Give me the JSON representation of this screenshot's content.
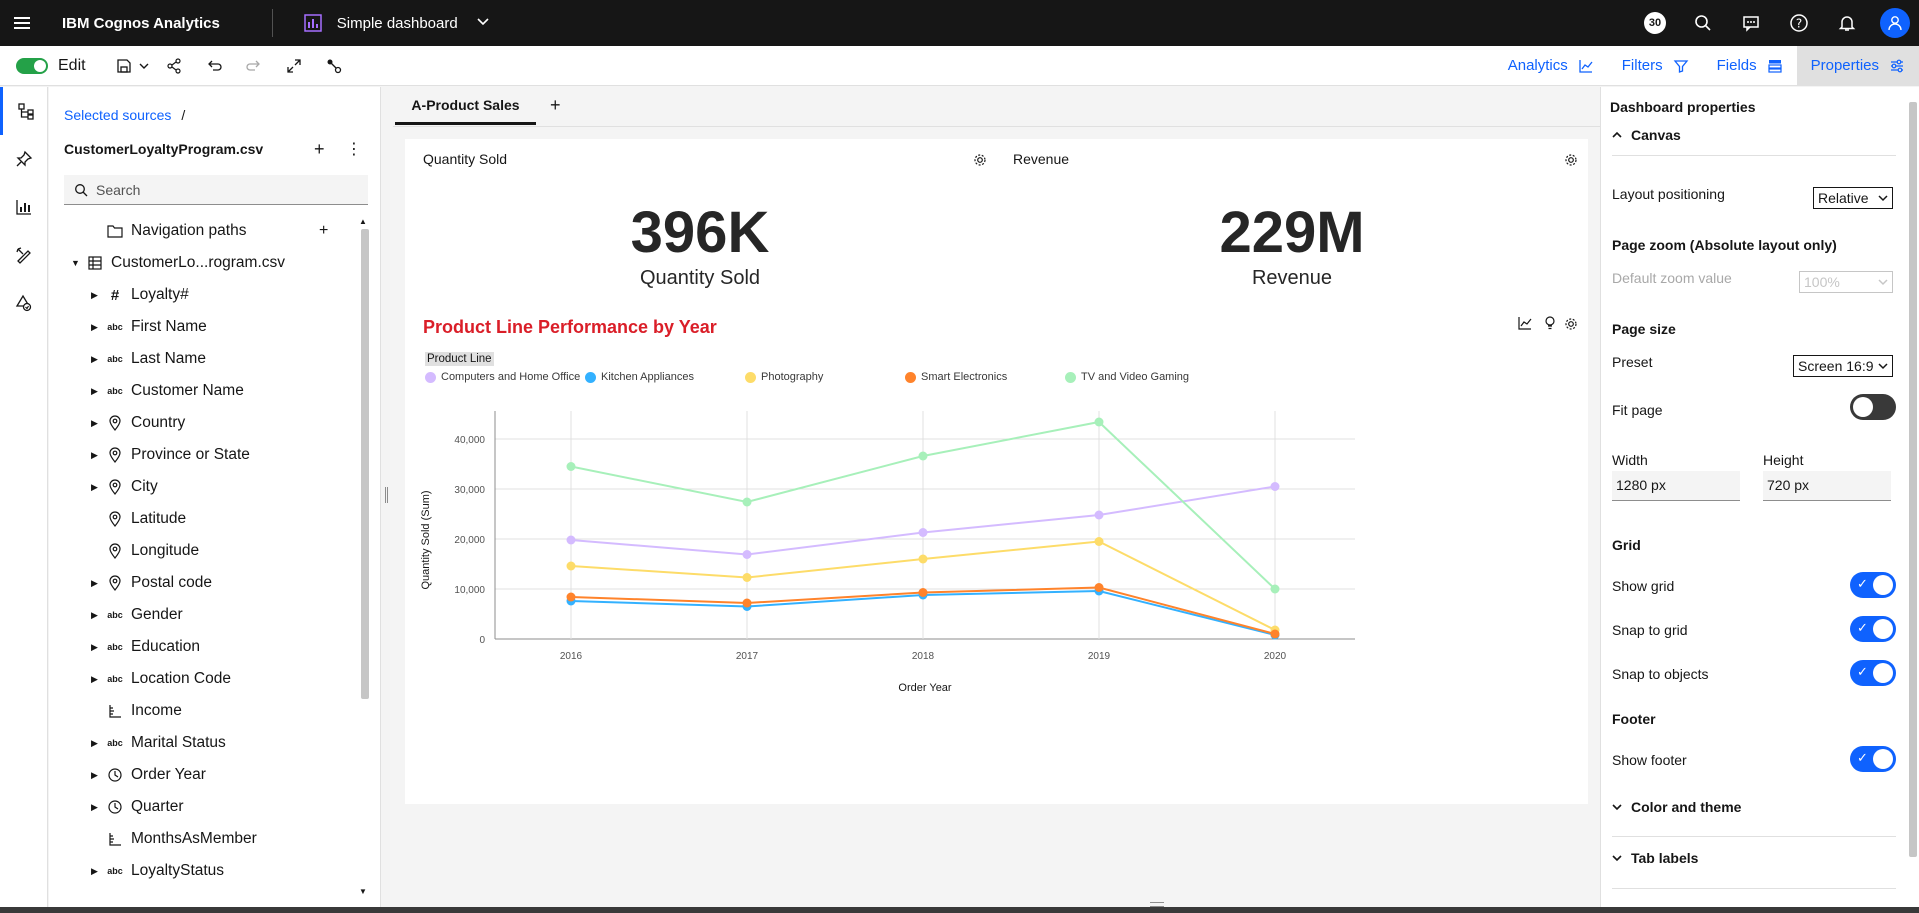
{
  "topbar": {
    "app_title": "IBM Cognos Analytics",
    "dashboard_title": "Simple dashboard",
    "notification_count": "30"
  },
  "toolbar": {
    "edit_label": "Edit",
    "tabs": [
      {
        "label": "Analytics"
      },
      {
        "label": "Filters"
      },
      {
        "label": "Fields"
      },
      {
        "label": "Properties"
      }
    ]
  },
  "sources": {
    "breadcrumb": "Selected sources",
    "breadcrumb_sep": "/",
    "source_name": "CustomerLoyaltyProgram.csv",
    "search_placeholder": "Search",
    "nav_paths": "Navigation paths",
    "table_name": "CustomerLo...rogram.csv",
    "fields": [
      {
        "label": "Loyalty#",
        "icon": "#"
      },
      {
        "label": "First Name",
        "icon": "abc"
      },
      {
        "label": "Last Name",
        "icon": "abc"
      },
      {
        "label": "Customer Name",
        "icon": "abc"
      },
      {
        "label": "Country",
        "icon": "geo"
      },
      {
        "label": "Province or State",
        "icon": "geo"
      },
      {
        "label": "City",
        "icon": "geo"
      },
      {
        "label": "Latitude",
        "icon": "geo"
      },
      {
        "label": "Longitude",
        "icon": "geo"
      },
      {
        "label": "Postal code",
        "icon": "geo"
      },
      {
        "label": "Gender",
        "icon": "abc"
      },
      {
        "label": "Education",
        "icon": "abc"
      },
      {
        "label": "Location Code",
        "icon": "abc"
      },
      {
        "label": "Income",
        "icon": "measure"
      },
      {
        "label": "Marital Status",
        "icon": "abc"
      },
      {
        "label": "Order Year",
        "icon": "time"
      },
      {
        "label": "Quarter",
        "icon": "time"
      },
      {
        "label": "MonthsAsMember",
        "icon": "measure"
      },
      {
        "label": "LoyaltyStatus",
        "icon": "abc"
      }
    ]
  },
  "canvas": {
    "tab_label": "A-Product Sales",
    "kpi1": {
      "title": "Quantity Sold",
      "value": "396K",
      "label": "Quantity Sold"
    },
    "kpi2": {
      "title": "Revenue",
      "value": "229M",
      "label": "Revenue"
    }
  },
  "chart_data": {
    "type": "line",
    "title": "Product Line Performance by Year",
    "legend_title": "Product Line",
    "xlabel": "Order Year",
    "ylabel": "Quantity Sold (Sum)",
    "categories": [
      "2016",
      "2017",
      "2018",
      "2019",
      "2020"
    ],
    "ylim": [
      0,
      40000
    ],
    "yticks": [
      0,
      10000,
      20000,
      30000,
      40000
    ],
    "ytick_labels": [
      "0",
      "10,000",
      "20,000",
      "30,000",
      "40,000"
    ],
    "series": [
      {
        "name": "Computers and Home Office",
        "color": "#d4bbff",
        "values": [
          19800,
          16900,
          21300,
          24800,
          30500
        ]
      },
      {
        "name": "Kitchen Appliances",
        "color": "#33b1ff",
        "values": [
          7600,
          6500,
          8800,
          9600,
          800
        ]
      },
      {
        "name": "Photography",
        "color": "#fddc69",
        "values": [
          14600,
          12300,
          16000,
          19500,
          1800
        ]
      },
      {
        "name": "Smart Electronics",
        "color": "#ff832b",
        "values": [
          8400,
          7200,
          9300,
          10300,
          1000
        ]
      },
      {
        "name": "TV and Video Gaming",
        "color": "#a7f0ba",
        "values": [
          34500,
          27400,
          36600,
          43400,
          10000
        ]
      }
    ]
  },
  "properties": {
    "title": "Dashboard properties",
    "canvas_section": "Canvas",
    "layout_positioning_label": "Layout positioning",
    "layout_positioning_value": "Relative",
    "page_zoom_label": "Page zoom (Absolute layout only)",
    "default_zoom_label": "Default zoom value",
    "default_zoom_value": "100%",
    "page_size_label": "Page size",
    "preset_label": "Preset",
    "preset_value": "Screen 16:9",
    "fit_page_label": "Fit page",
    "fit_page": false,
    "width_label": "Width",
    "width_value": "1280 px",
    "height_label": "Height",
    "height_value": "720 px",
    "grid_label": "Grid",
    "show_grid_label": "Show grid",
    "snap_grid_label": "Snap to grid",
    "snap_objects_label": "Snap to objects",
    "footer_label": "Footer",
    "show_footer_label": "Show footer",
    "color_theme_section": "Color and theme",
    "tab_labels_section": "Tab labels"
  }
}
